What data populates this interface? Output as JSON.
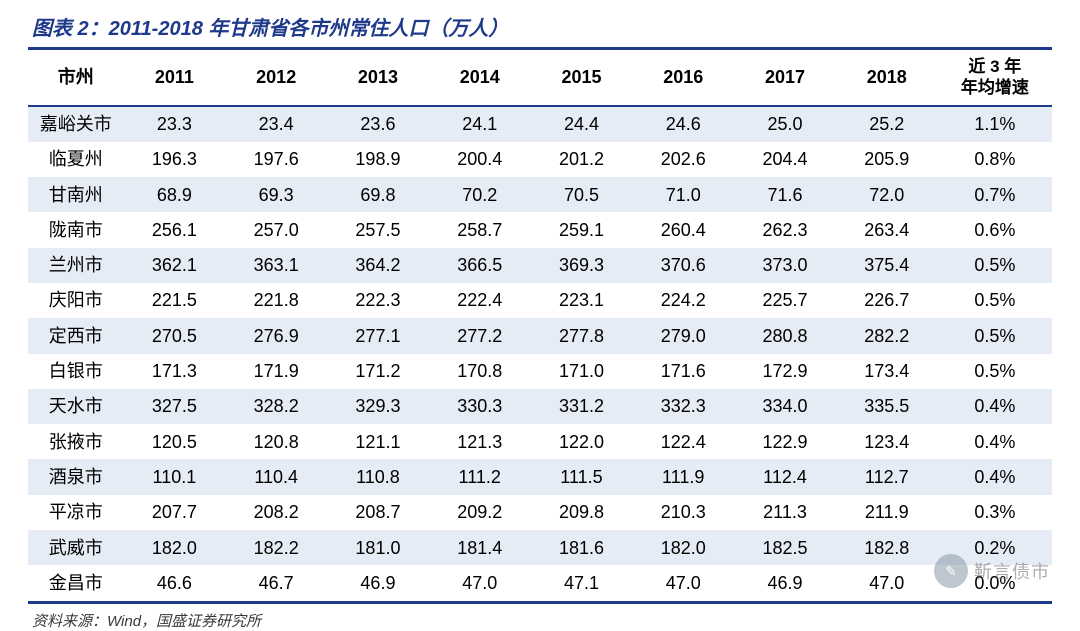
{
  "title": "图表 2：2011-2018 年甘肃省各市州常住人口（万人）",
  "source": "资料来源：Wind，国盛证券研究所",
  "watermark": {
    "icon": "✎",
    "text": "靳言债市"
  },
  "style": {
    "border_color": "#1f3a8a",
    "title_color": "#1f3a8a",
    "row_odd_bg": "#e6ecf5",
    "row_even_bg": "#ffffff",
    "header_fontsize": 18,
    "cell_fontsize": 18,
    "title_fontsize": 20,
    "source_fontsize": 15
  },
  "table": {
    "first_col_header": "市州",
    "last_col_header": "近 3 年\n年均增速",
    "year_headers": [
      "2011",
      "2012",
      "2013",
      "2014",
      "2015",
      "2016",
      "2017",
      "2018"
    ],
    "rows": [
      {
        "label": "嘉峪关市",
        "vals": [
          "23.3",
          "23.4",
          "23.6",
          "24.1",
          "24.4",
          "24.6",
          "25.0",
          "25.2"
        ],
        "growth": "1.1%"
      },
      {
        "label": "临夏州",
        "vals": [
          "196.3",
          "197.6",
          "198.9",
          "200.4",
          "201.2",
          "202.6",
          "204.4",
          "205.9"
        ],
        "growth": "0.8%"
      },
      {
        "label": "甘南州",
        "vals": [
          "68.9",
          "69.3",
          "69.8",
          "70.2",
          "70.5",
          "71.0",
          "71.6",
          "72.0"
        ],
        "growth": "0.7%"
      },
      {
        "label": "陇南市",
        "vals": [
          "256.1",
          "257.0",
          "257.5",
          "258.7",
          "259.1",
          "260.4",
          "262.3",
          "263.4"
        ],
        "growth": "0.6%"
      },
      {
        "label": "兰州市",
        "vals": [
          "362.1",
          "363.1",
          "364.2",
          "366.5",
          "369.3",
          "370.6",
          "373.0",
          "375.4"
        ],
        "growth": "0.5%"
      },
      {
        "label": "庆阳市",
        "vals": [
          "221.5",
          "221.8",
          "222.3",
          "222.4",
          "223.1",
          "224.2",
          "225.7",
          "226.7"
        ],
        "growth": "0.5%"
      },
      {
        "label": "定西市",
        "vals": [
          "270.5",
          "276.9",
          "277.1",
          "277.2",
          "277.8",
          "279.0",
          "280.8",
          "282.2"
        ],
        "growth": "0.5%"
      },
      {
        "label": "白银市",
        "vals": [
          "171.3",
          "171.9",
          "171.2",
          "170.8",
          "171.0",
          "171.6",
          "172.9",
          "173.4"
        ],
        "growth": "0.5%"
      },
      {
        "label": "天水市",
        "vals": [
          "327.5",
          "328.2",
          "329.3",
          "330.3",
          "331.2",
          "332.3",
          "334.0",
          "335.5"
        ],
        "growth": "0.4%"
      },
      {
        "label": "张掖市",
        "vals": [
          "120.5",
          "120.8",
          "121.1",
          "121.3",
          "122.0",
          "122.4",
          "122.9",
          "123.4"
        ],
        "growth": "0.4%"
      },
      {
        "label": "酒泉市",
        "vals": [
          "110.1",
          "110.4",
          "110.8",
          "111.2",
          "111.5",
          "111.9",
          "112.4",
          "112.7"
        ],
        "growth": "0.4%"
      },
      {
        "label": "平凉市",
        "vals": [
          "207.7",
          "208.2",
          "208.7",
          "209.2",
          "209.8",
          "210.3",
          "211.3",
          "211.9"
        ],
        "growth": "0.3%"
      },
      {
        "label": "武威市",
        "vals": [
          "182.0",
          "182.2",
          "181.0",
          "181.4",
          "181.6",
          "182.0",
          "182.5",
          "182.8"
        ],
        "growth": "0.2%"
      },
      {
        "label": "金昌市",
        "vals": [
          "46.6",
          "46.7",
          "46.9",
          "47.0",
          "47.1",
          "47.0",
          "46.9",
          "47.0"
        ],
        "growth": "0.0%"
      }
    ]
  }
}
